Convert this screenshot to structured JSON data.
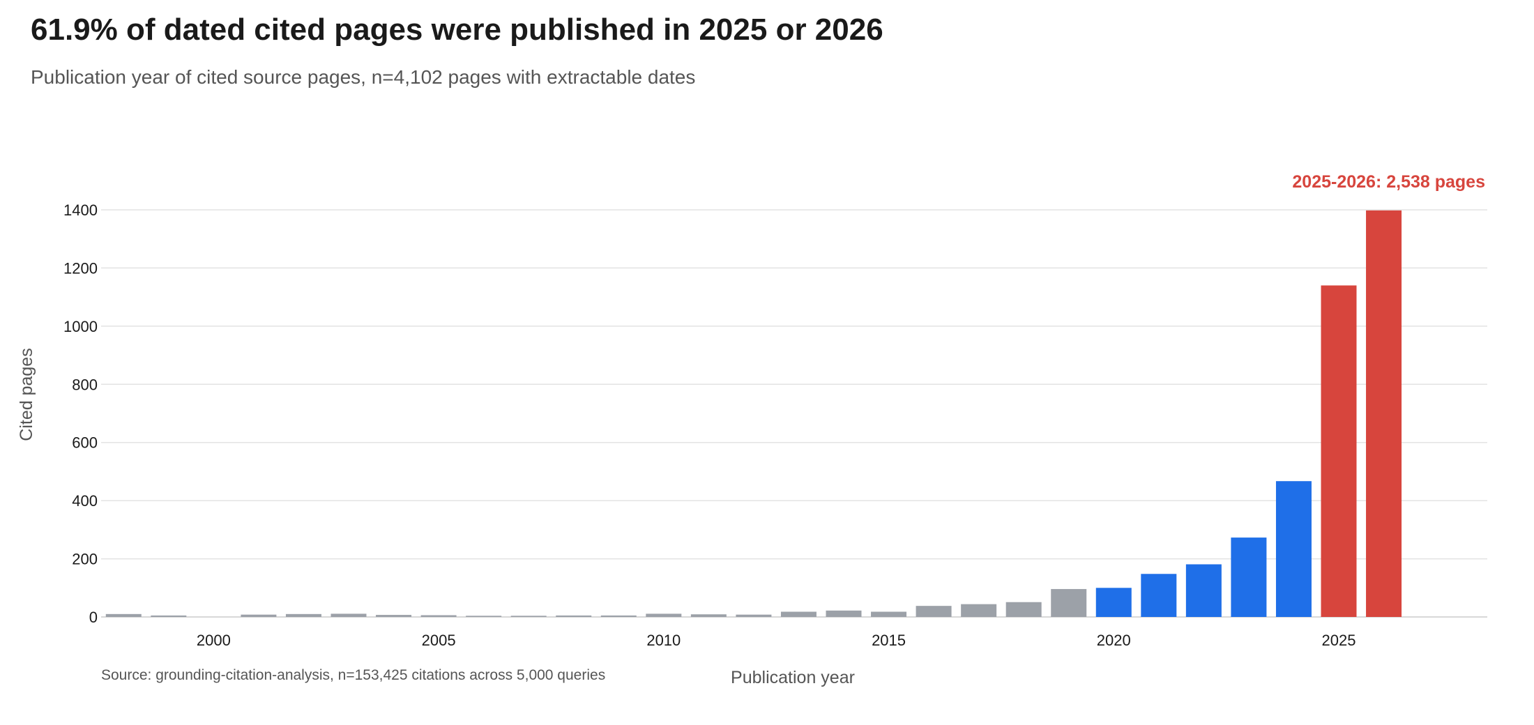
{
  "header": {
    "title": "61.9% of dated cited pages were published in 2025 or 2026",
    "subtitle": "Publication year of cited source pages, n=4,102 pages with extractable dates"
  },
  "source_note": "Source: grounding-citation-analysis, n=153,425 citations across 5,000 queries",
  "colors": {
    "older": "#9ca1a8",
    "recent": "#1f6fe8",
    "highlight": "#d7453d",
    "grid": "#e3e3e3",
    "axis": "#cccccc"
  },
  "chart_data": {
    "type": "bar",
    "title": "61.9% of dated cited pages were published in 2025 or 2026",
    "subtitle": "Publication year of cited source pages, n=4,102 pages with extractable dates",
    "xlabel": "Publication year",
    "ylabel": "Cited pages",
    "x": [
      1998,
      1999,
      2000,
      2001,
      2002,
      2003,
      2004,
      2005,
      2006,
      2007,
      2008,
      2009,
      2010,
      2011,
      2012,
      2013,
      2014,
      2015,
      2016,
      2017,
      2018,
      2019,
      2020,
      2021,
      2022,
      2023,
      2024,
      2025,
      2026
    ],
    "values": [
      10,
      5,
      0,
      8,
      10,
      11,
      7,
      6,
      4,
      4,
      5,
      5,
      11,
      9,
      8,
      18,
      22,
      18,
      38,
      44,
      51,
      96,
      100,
      148,
      181,
      273,
      467,
      1140,
      1398
    ],
    "groups": [
      "older",
      "older",
      "older",
      "older",
      "older",
      "older",
      "older",
      "older",
      "older",
      "older",
      "older",
      "older",
      "older",
      "older",
      "older",
      "older",
      "older",
      "older",
      "older",
      "older",
      "older",
      "older",
      "recent",
      "recent",
      "recent",
      "recent",
      "recent",
      "highlight",
      "highlight"
    ],
    "xticks": [
      2000,
      2005,
      2010,
      2015,
      2020,
      2025
    ],
    "yticks": [
      0,
      200,
      400,
      600,
      800,
      1000,
      1200,
      1400
    ],
    "xlim": [
      1997.5,
      2028.3
    ],
    "ylim": [
      0,
      1400
    ],
    "grid": "horizontal",
    "annotation": "2025-2026: 2,538 pages"
  }
}
